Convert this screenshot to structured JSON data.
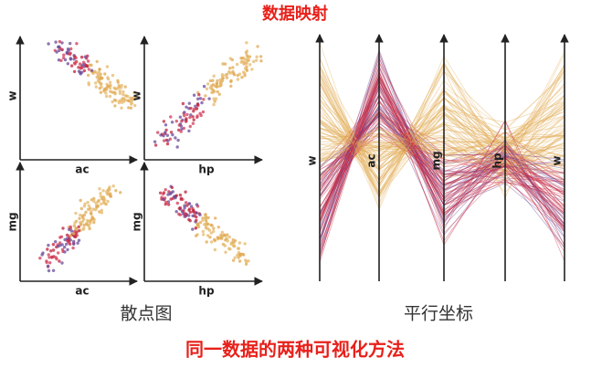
{
  "title": "数据映射",
  "scatter_matrix": {
    "panels": [
      {
        "y_label": "w",
        "x_label": "ac"
      },
      {
        "y_label": "w",
        "x_label": "hp"
      },
      {
        "y_label": "mg",
        "x_label": "ac"
      },
      {
        "y_label": "mg",
        "x_label": "hp"
      }
    ],
    "caption": "散点图"
  },
  "parallel_coordinates": {
    "axes": [
      "w",
      "ac",
      "mg",
      "hp",
      "w"
    ],
    "caption": "平行坐标"
  },
  "footer": "同一数据的两种可视化方法"
}
